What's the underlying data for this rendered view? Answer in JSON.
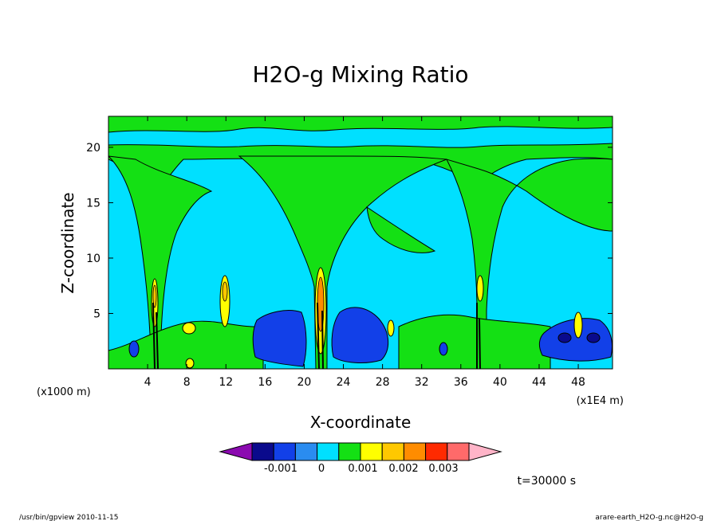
{
  "chart_data": {
    "type": "heatmap",
    "title": "H2O-g Mixing Ratio",
    "xlabel": "X-coordinate",
    "ylabel": "Z-coordinate",
    "x_unit_left": "(x1000 m)",
    "x_unit_right": "(x1E4 m)",
    "xlim": [
      0,
      51.5
    ],
    "ylim": [
      0,
      22.8
    ],
    "x_ticks": [
      "4",
      "8",
      "12",
      "16",
      "20",
      "24",
      "28",
      "32",
      "36",
      "40",
      "44",
      "48"
    ],
    "y_ticks": [
      "5",
      "10",
      "15",
      "20"
    ],
    "contour_levels": [
      "-0.001",
      "0",
      "0.001",
      "0.002",
      "0.003"
    ],
    "colorbar_colors": [
      "#8b0ab0",
      "#0a0a8c",
      "#1240e8",
      "#2a8cf0",
      "#00e0ff",
      "#14e014",
      "#ffff00",
      "#ffc800",
      "#ff8c00",
      "#ff2a00",
      "#ff6a6a",
      "#ffb4c8"
    ],
    "background_value_color": "#00e0ff",
    "time_label": "t=30000 s",
    "footer_left": "/usr/bin/gpview   2010-11-15",
    "footer_right": "arare-earth_H2O-g.nc@H2O-g",
    "features": [
      {
        "kind": "upper_band",
        "z_range": [
          18.8,
          22.8
        ],
        "color": "#14e014"
      },
      {
        "kind": "plume",
        "x": 4.7,
        "top_z": 18.5
      },
      {
        "kind": "plume",
        "x": 21.4,
        "top_z": 19.0
      },
      {
        "kind": "plume",
        "x": 37.6,
        "top_z": 19.0
      },
      {
        "kind": "negative_blob",
        "x_range": [
          15.0,
          20.0
        ],
        "z_range": [
          0.3,
          5.0
        ]
      },
      {
        "kind": "negative_blob",
        "x_range": [
          23.0,
          29.0
        ],
        "z_range": [
          0.3,
          5.8
        ]
      },
      {
        "kind": "negative_blob",
        "x_range": [
          43.5,
          51.5
        ],
        "z_range": [
          0.3,
          5.0
        ]
      }
    ]
  }
}
